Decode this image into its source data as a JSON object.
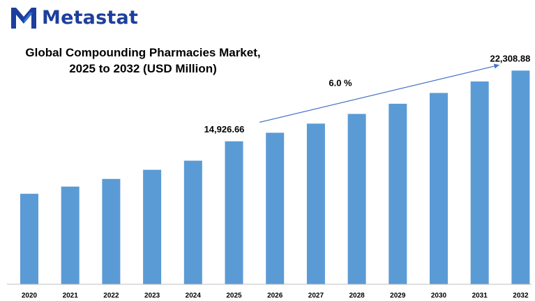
{
  "brand": {
    "name": "Metastat",
    "color": "#1d3f9c",
    "icon": "metastat-m-logo-icon"
  },
  "chart_data": {
    "type": "bar",
    "title_line1": "Global Compounding Pharmacies Market,",
    "title_line2": "2025 to 2032 (USD Million)",
    "categories": [
      "2020",
      "2021",
      "2022",
      "2023",
      "2024",
      "2025",
      "2026",
      "2027",
      "2028",
      "2029",
      "2030",
      "2031",
      "2032"
    ],
    "values": [
      9450,
      10200,
      11000,
      11950,
      12900,
      14926.66,
      15820,
      16770,
      17780,
      18840,
      19970,
      21170,
      22308.88
    ],
    "bar_color": "#5b9bd5",
    "ylim": [
      0,
      24000
    ],
    "grid": false,
    "annotations": {
      "start_label": "14,926.66",
      "end_label": "22,308.88",
      "cagr_label": "6.0 %"
    }
  }
}
